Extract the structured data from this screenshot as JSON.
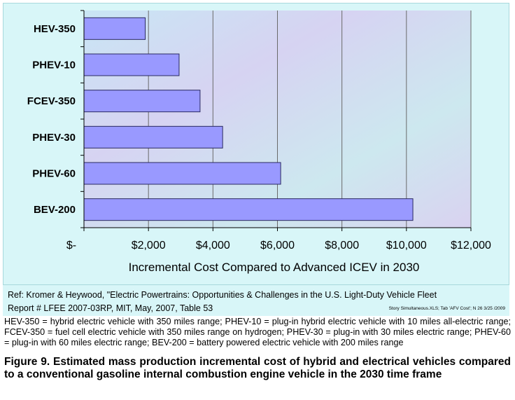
{
  "chart_data": {
    "type": "bar",
    "orientation": "horizontal",
    "categories": [
      "HEV-350",
      "PHEV-10",
      "FCEV-350",
      "PHEV-30",
      "PHEV-60",
      "BEV-200"
    ],
    "values": [
      1900,
      2950,
      3600,
      4300,
      6100,
      10200
    ],
    "xlabel": "Incremental Cost Compared to Advanced ICEV in 2030",
    "xlim": [
      0,
      12000
    ],
    "xticks": [
      0,
      2000,
      4000,
      6000,
      8000,
      10000,
      12000
    ],
    "xtick_labels": [
      "$-",
      "$2,000",
      "$4,000",
      "$6,000",
      "$8,000",
      "$10,000",
      "$12,000"
    ],
    "grid": "vertical",
    "bar_color": "#9999ff",
    "panel_color": "#d8f6f8"
  },
  "reference": {
    "line1": "Ref: Kromer & Heywood, \"Electric Powertrains: Opportunities & Challenges in the U.S. Light-Duty Vehicle Fleet",
    "line2": "Report # LFEE 2007-03RP, MIT, May, 2007, Table 53",
    "small_note": "Story Simultaneous.XLS; Tab 'AFV Cost'; N 26  3/25 /2009"
  },
  "legend_text": "HEV-350 = hybrid electric vehicle with 350 miles range; PHEV-10 = plug-in hybrid electric vehicle with 10 miles all-electric range; FCEV-350 = fuel cell electric vehicle with 350 miles range on hydrogen; PHEV-30 = plug-in with 30 miles electric range; PHEV-60 = plug-in with 60 miles electric range; BEV-200 = battery powered electric vehicle with 200 miles range",
  "caption": "Figure 9.  Estimated mass production incremental cost of hybrid and electrical vehicles compared to a conventional gasoline internal combustion engine vehicle in the 2030 time frame"
}
